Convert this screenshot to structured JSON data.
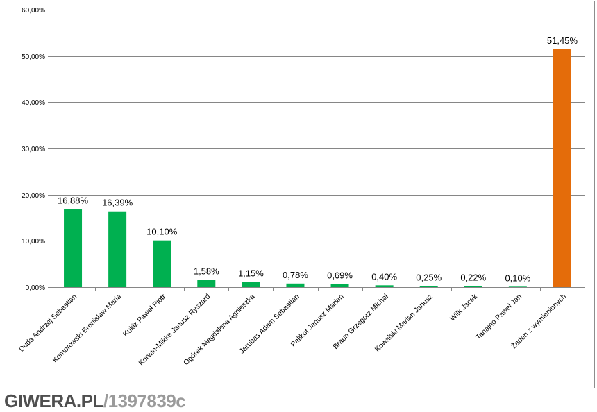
{
  "chart_data": {
    "type": "bar",
    "title": "",
    "xlabel": "",
    "ylabel": "",
    "ylim": [
      0,
      60
    ],
    "y_ticks": [
      "0,00%",
      "10,00%",
      "20,00%",
      "30,00%",
      "40,00%",
      "50,00%",
      "60,00%"
    ],
    "grid": true,
    "categories": [
      "Duda Andrzej Sebastian",
      "Komorowski Bronisław Maria",
      "Kukiz Paweł Piotr",
      "Korwin-Mikke Janusz Ryszard",
      "Ogórek Magdalena Agnieszka",
      "Jarubas Adam Sebastian",
      "Palikot Janusz Marian",
      "Braun Grzegorz Michał",
      "Kowalski Marian Janusz",
      "Wilk Jacek",
      "Tanajno Paweł Jan",
      "Żaden z wymienionych"
    ],
    "values": [
      16.88,
      16.39,
      10.1,
      1.58,
      1.15,
      0.78,
      0.69,
      0.4,
      0.25,
      0.22,
      0.1,
      51.45
    ],
    "value_labels": [
      "16,88%",
      "16,39%",
      "10,10%",
      "1,58%",
      "1,15%",
      "0,78%",
      "0,69%",
      "0,40%",
      "0,25%",
      "0,22%",
      "0,10%",
      "51,45%"
    ],
    "colors": [
      "#00b050",
      "#00b050",
      "#00b050",
      "#00b050",
      "#00b050",
      "#00b050",
      "#00b050",
      "#00b050",
      "#00b050",
      "#00b050",
      "#00b050",
      "#e46c0a"
    ]
  },
  "watermark": {
    "site": "GIWERA.PL",
    "id": "/1397839c"
  }
}
